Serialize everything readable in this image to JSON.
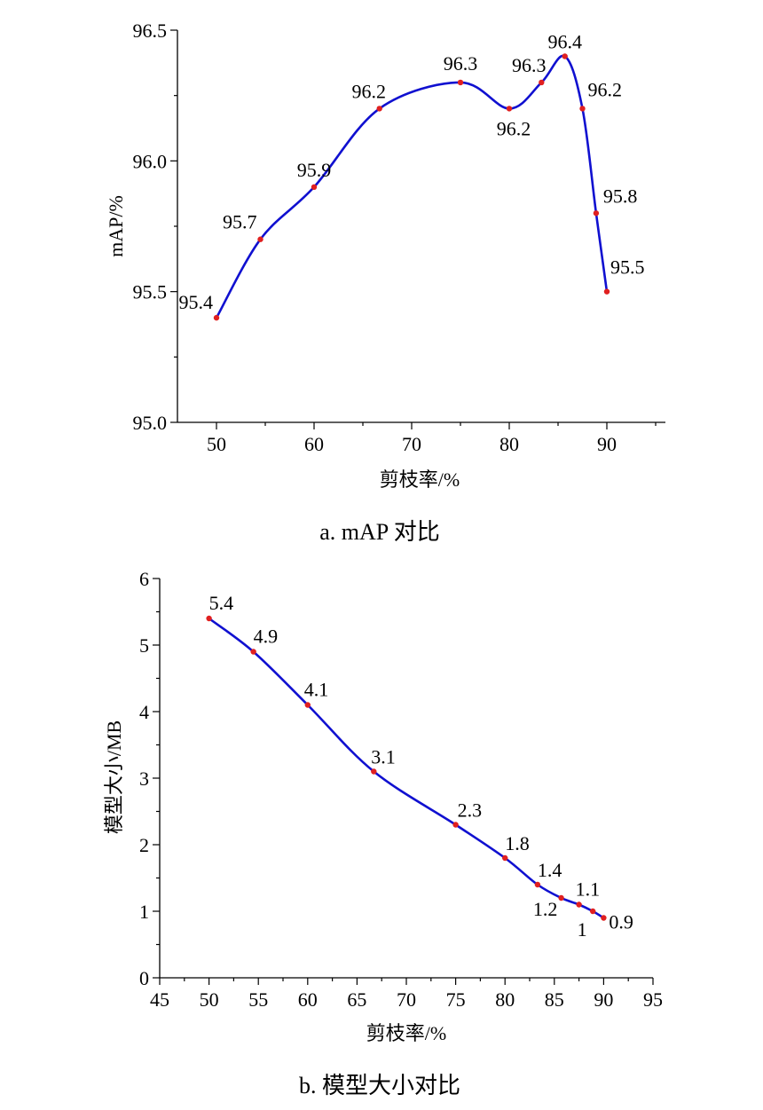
{
  "colors": {
    "line": "#1010d0",
    "marker": "#e02020",
    "axis": "#000000"
  },
  "chart_data": [
    {
      "type": "line",
      "caption": "a. mAP 对比",
      "xlabel": "剪枝率/%",
      "ylabel": "mAP/%",
      "xlim": [
        46,
        96
      ],
      "ylim": [
        95.0,
        96.5
      ],
      "x_ticks": [
        "50",
        "60",
        "70",
        "80",
        "90"
      ],
      "y_ticks": [
        "95.0",
        "95.5",
        "96.0",
        "96.5"
      ],
      "grid": false,
      "series": [
        {
          "x": [
            50,
            54.5,
            60,
            66.7,
            75,
            80,
            83.3,
            85.7,
            87.5,
            88.9,
            90
          ],
          "y": [
            95.4,
            95.7,
            95.9,
            96.2,
            96.3,
            96.2,
            96.3,
            96.4,
            96.2,
            95.8,
            95.5
          ],
          "labels": [
            "95.4",
            "95.7",
            "95.9",
            "96.2",
            "96.3",
            "96.2",
            "96.3",
            "96.4",
            "96.2",
            "95.8",
            "95.5"
          ]
        }
      ]
    },
    {
      "type": "line",
      "caption": "b. 模型大小对比",
      "xlabel": "剪枝率/%",
      "ylabel": "模型大小/MB",
      "xlim": [
        45,
        95
      ],
      "ylim": [
        0,
        6
      ],
      "x_ticks": [
        "45",
        "50",
        "55",
        "60",
        "65",
        "70",
        "75",
        "80",
        "85",
        "90",
        "95"
      ],
      "y_ticks": [
        "0",
        "1",
        "2",
        "3",
        "4",
        "5",
        "6"
      ],
      "grid": false,
      "series": [
        {
          "x": [
            50,
            54.5,
            60,
            66.7,
            75,
            80,
            83.3,
            85.7,
            87.5,
            88.9,
            90
          ],
          "y": [
            5.4,
            4.9,
            4.1,
            3.1,
            2.3,
            1.8,
            1.4,
            1.2,
            1.1,
            1.0,
            0.9
          ],
          "labels": [
            "5.4",
            "4.9",
            "4.1",
            "3.1",
            "2.3",
            "1.8",
            "1.4",
            "1.2",
            "1.1",
            "1",
            "0.9"
          ]
        }
      ]
    }
  ]
}
